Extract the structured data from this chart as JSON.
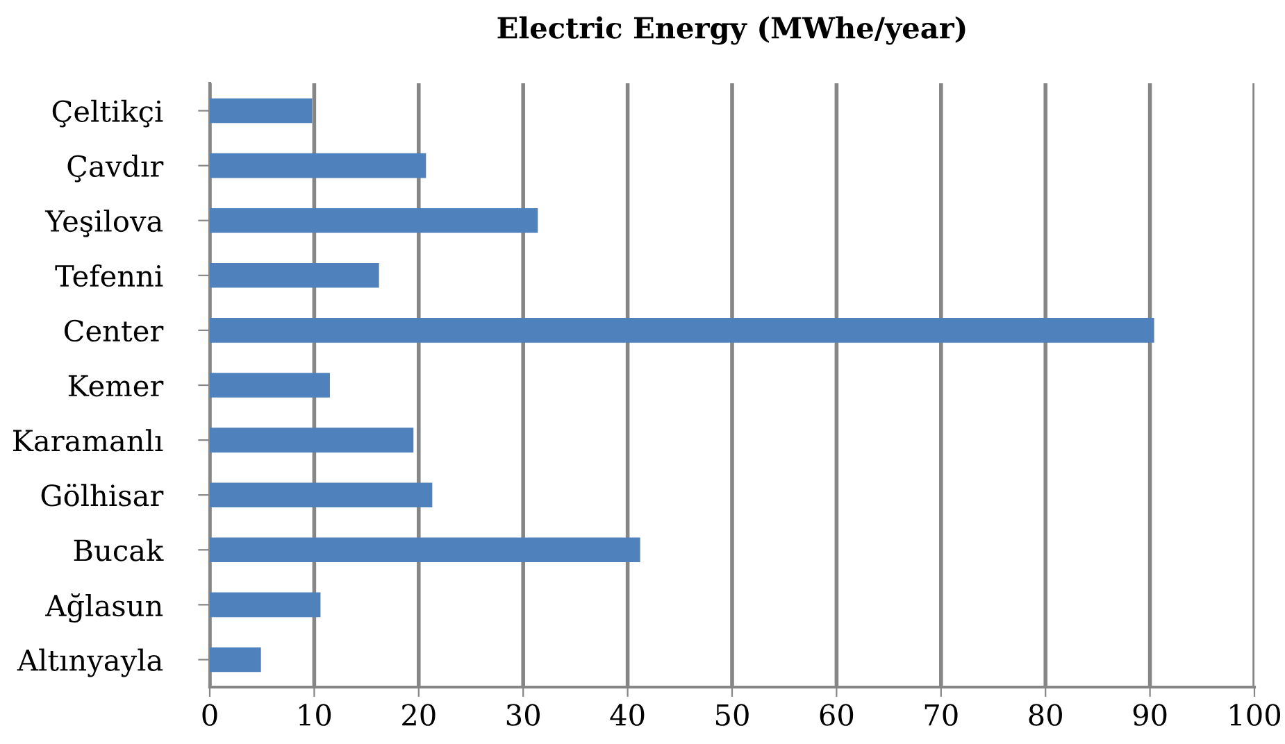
{
  "chart_data": {
    "type": "bar",
    "orientation": "horizontal",
    "title": "Electric Energy (MWhe/year)",
    "categories": [
      "Çeltikçi",
      "Çavdır",
      "Yeşilova",
      "Tefenni",
      "Center",
      "Kemer",
      "Karamanlı",
      "Gölhisar",
      "Bucak",
      "Ağlasun",
      "Altınyayla"
    ],
    "values": [
      9.8,
      20.7,
      31.4,
      16.2,
      90.4,
      11.5,
      19.5,
      21.3,
      41.2,
      10.6,
      4.9
    ],
    "color": "#4f81bd",
    "xlim": [
      0,
      100
    ],
    "xticks": [
      0,
      10,
      20,
      30,
      40,
      50,
      60,
      70,
      80,
      90,
      100
    ],
    "grid": "x",
    "legend": false
  }
}
